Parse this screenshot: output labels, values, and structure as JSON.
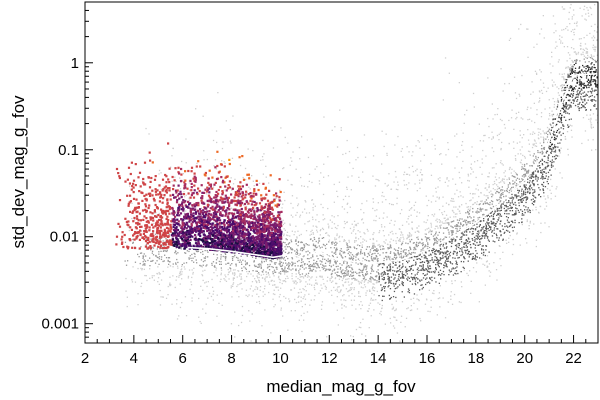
{
  "chart_data": {
    "type": "scatter",
    "xlabel": "median_mag_g_fov",
    "ylabel": "std_dev_mag_g_fov",
    "xlim": [
      2,
      23
    ],
    "ylim": [
      0.0006,
      5
    ],
    "y_scale": "log",
    "x_ticks": [
      {
        "value": 2,
        "label": "2"
      },
      {
        "value": 4,
        "label": "4"
      },
      {
        "value": 6,
        "label": "6"
      },
      {
        "value": 8,
        "label": "8"
      },
      {
        "value": 10,
        "label": "10"
      },
      {
        "value": 12,
        "label": "12"
      },
      {
        "value": 14,
        "label": "14"
      },
      {
        "value": 16,
        "label": "16"
      },
      {
        "value": 18,
        "label": "18"
      },
      {
        "value": 20,
        "label": "20"
      },
      {
        "value": 22,
        "label": "22"
      }
    ],
    "y_ticks": [
      {
        "value": 0.001,
        "label": "0.001"
      },
      {
        "value": 0.01,
        "label": "0.01"
      },
      {
        "value": 0.1,
        "label": "0.1"
      },
      {
        "value": 1,
        "label": "1"
      }
    ],
    "grid": false,
    "series": [
      {
        "kind": "median-line",
        "color": "#ffffff",
        "x": [
          6.2,
          7.0,
          8.0,
          9.0,
          9.7,
          10.5,
          11.0,
          11.5,
          12.0,
          13.0,
          14.0,
          15.0,
          16.0,
          17.0,
          18.0,
          19.0,
          20.0,
          20.8,
          21.2,
          21.6,
          22.0,
          23.0
        ],
        "y": [
          0.0075,
          0.0073,
          0.0068,
          0.0062,
          0.0058,
          0.0063,
          0.0056,
          0.007,
          0.0058,
          0.0052,
          0.005,
          0.0055,
          0.007,
          0.0098,
          0.0145,
          0.024,
          0.045,
          0.09,
          0.18,
          0.4,
          0.72,
          0.75
        ]
      },
      {
        "kind": "density-background",
        "colormap": "gray",
        "colors": [
          "#cfcfcf",
          "#9a9a9a",
          "#5a5a5a",
          "#2a2a2a"
        ]
      },
      {
        "kind": "highlighted-bins",
        "colormap": "inferno",
        "colors": [
          "#1b0c41",
          "#4a0c6b",
          "#781c6d",
          "#a52c60",
          "#cf4446",
          "#ed6925",
          "#fb9b06",
          "#f7d13d"
        ],
        "x_range": [
          3.2,
          10.0
        ]
      }
    ]
  }
}
